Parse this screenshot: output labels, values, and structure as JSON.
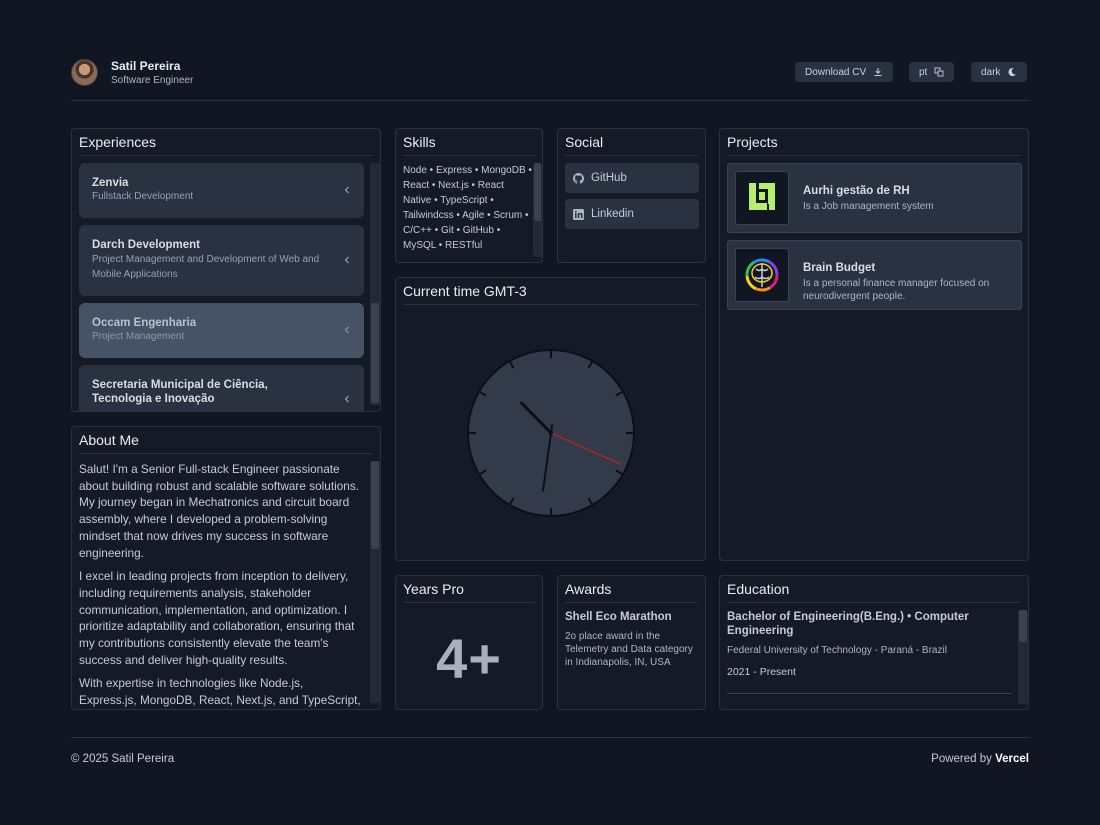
{
  "header": {
    "name": "Satil Pereira",
    "role": "Software Engineer",
    "download_cv": "Download CV",
    "lang": "pt",
    "theme": "dark"
  },
  "experiences": {
    "title": "Experiences",
    "items": [
      {
        "company": "Zenvia",
        "role": "Fullstack Development"
      },
      {
        "company": "Darch Development",
        "role": "Project Management and Development of Web and Mobile Applications"
      },
      {
        "company": "Occam Engenharia",
        "role": "Project Management"
      },
      {
        "company": "Secretaria Municipal de Ciência, Tecnologia e Inovação",
        "role": ""
      }
    ]
  },
  "skills": {
    "title": "Skills",
    "text": "Node • Express • MongoDB • React • Next.js • React Native • TypeScript • Tailwindcss • Agile • Scrum • C/C++ • Git • GitHub • MySQL • RESTful"
  },
  "social": {
    "title": "Social",
    "links": [
      {
        "label": "GitHub",
        "icon": "github-icon"
      },
      {
        "label": "Linkedin",
        "icon": "linkedin-icon"
      }
    ]
  },
  "projects": {
    "title": "Projects",
    "items": [
      {
        "name": "Aurhi gestão de RH",
        "desc": "Is a Job management system",
        "icon": "aurhi-logo"
      },
      {
        "name": "Brain Budget",
        "desc": "Is a personal finance manager focused on neurodivergent people.",
        "icon": "brain-logo"
      }
    ]
  },
  "clock": {
    "title": "Current time GMT-3",
    "hour": 10,
    "minute": 31,
    "second": 19
  },
  "about": {
    "title": "About Me",
    "paragraphs": [
      "Salut! I'm a Senior Full-stack Engineer passionate about building robust and scalable software solutions. My journey began in Mechatronics and circuit board assembly, where I developed a problem-solving mindset that now drives my success in software engineering.",
      "I excel in leading projects from inception to delivery, including requirements analysis, stakeholder communication, implementation, and optimization. I prioritize adaptability and collaboration, ensuring that my contributions consistently elevate the team's success and deliver high-quality results.",
      "With expertise in technologies like Node.js, Express.js, MongoDB, React, Next.js, and TypeScript,"
    ]
  },
  "years": {
    "title": "Years Pro",
    "value": "4+"
  },
  "awards": {
    "title": "Awards",
    "name": "Shell Eco Marathon",
    "desc": "2o place award in the Telemetry and Data category in Indianapolis, IN, USA"
  },
  "education": {
    "title": "Education",
    "degree": "Bachelor of Engineering(B.Eng.) • Computer Engineering",
    "school": "Federal University of Technology - Paraná - Brazil",
    "period": "2021 - Present"
  },
  "footer": {
    "copyright": "© 2025 Satil Pereira",
    "powered_prefix": "Powered by",
    "powered_brand": "Vercel"
  }
}
